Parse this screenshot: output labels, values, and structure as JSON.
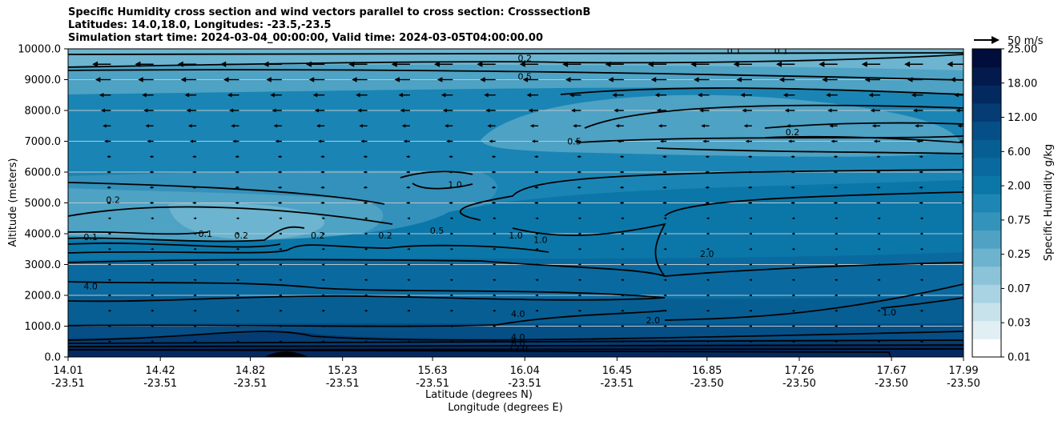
{
  "chart_data": {
    "type": "contourf",
    "title_lines": [
      "Specific Humidity cross section and wind vectors parallel to cross section: CrosssectionB",
      "Latitudes: 14.0,18.0, Longitudes: -23.5,-23.5",
      "Simulation start time: 2024-03-04_00:00:00, Valid time: 2024-03-05T04:00:00.00"
    ],
    "ylabel": "Altitude (meters)",
    "xlabel_lines": [
      "Latitude (degrees N)",
      "Longitude (degrees E)"
    ],
    "ylim": [
      0,
      10000
    ],
    "yticks": [
      "0.0",
      "1000.0",
      "2000.0",
      "3000.0",
      "4000.0",
      "5000.0",
      "6000.0",
      "7000.0",
      "8000.0",
      "9000.0",
      "10000.0"
    ],
    "xticks": [
      {
        "lat": "14.01",
        "lon": "-23.51"
      },
      {
        "lat": "14.42",
        "lon": "-23.51"
      },
      {
        "lat": "14.82",
        "lon": "-23.51"
      },
      {
        "lat": "15.23",
        "lon": "-23.51"
      },
      {
        "lat": "15.63",
        "lon": "-23.51"
      },
      {
        "lat": "16.04",
        "lon": "-23.51"
      },
      {
        "lat": "16.45",
        "lon": "-23.51"
      },
      {
        "lat": "16.85",
        "lon": "-23.50"
      },
      {
        "lat": "17.26",
        "lon": "-23.50"
      },
      {
        "lat": "17.67",
        "lon": "-23.50"
      },
      {
        "lat": "17.99",
        "lon": "-23.50"
      }
    ],
    "colorbar": {
      "label": "Specific Humidity g/kg",
      "tick_labels": [
        "0.01",
        "0.03",
        "0.07",
        "0.25",
        "0.75",
        "2.00",
        "6.00",
        "12.00",
        "18.00",
        "25.00"
      ],
      "colors": [
        "#ffffff",
        "#e1eff4",
        "#c7e2eb",
        "#a9d3e2",
        "#8bc3d8",
        "#6db3ce",
        "#4fa2c3",
        "#3493bb",
        "#1d86b4",
        "#0b77a9",
        "#0a6a9f",
        "#075e93",
        "#054f86",
        "#043c73",
        "#032a60",
        "#021a4c",
        "#010d3a"
      ]
    },
    "wind_key": {
      "label": "50 m/s",
      "speed": 50
    },
    "contour_levels": [
      0.1,
      0.2,
      0.5,
      1.0,
      2.0,
      4.0,
      8.0,
      12.0
    ],
    "contour_labels": [
      {
        "text": "0.2",
        "lat": 16.04,
        "alt": 9700
      },
      {
        "text": "0.5",
        "lat": 16.04,
        "alt": 9100
      },
      {
        "text": "0.1",
        "lat": 16.97,
        "alt": 9930
      },
      {
        "text": "0.1",
        "lat": 17.18,
        "alt": 9930
      },
      {
        "text": "0.5",
        "lat": 16.26,
        "alt": 7000
      },
      {
        "text": "0.2",
        "lat": 17.23,
        "alt": 7300
      },
      {
        "text": "1.0",
        "lat": 15.73,
        "alt": 5600
      },
      {
        "text": "0.2",
        "lat": 14.21,
        "alt": 5100
      },
      {
        "text": "0.1",
        "lat": 14.11,
        "alt": 3900
      },
      {
        "text": "0.1",
        "lat": 14.62,
        "alt": 4000
      },
      {
        "text": "0.2",
        "lat": 14.78,
        "alt": 3950
      },
      {
        "text": "0.2",
        "lat": 15.12,
        "alt": 3950
      },
      {
        "text": "0.2",
        "lat": 15.42,
        "alt": 3950
      },
      {
        "text": "0.5",
        "lat": 15.65,
        "alt": 4100
      },
      {
        "text": "1.0",
        "lat": 16.0,
        "alt": 3950
      },
      {
        "text": "1.0",
        "lat": 16.11,
        "alt": 3800
      },
      {
        "text": "2.0",
        "lat": 16.85,
        "alt": 3350
      },
      {
        "text": "4.0",
        "lat": 14.11,
        "alt": 2300
      },
      {
        "text": "4.0",
        "lat": 16.01,
        "alt": 1400
      },
      {
        "text": "2.0",
        "lat": 16.61,
        "alt": 1200
      },
      {
        "text": "1.0",
        "lat": 17.66,
        "alt": 1450
      },
      {
        "text": "4.0",
        "lat": 16.01,
        "alt": 650
      },
      {
        "text": "8.0",
        "lat": 16.01,
        "alt": 450
      },
      {
        "text": "12.0",
        "lat": 16.01,
        "alt": 280
      }
    ]
  }
}
